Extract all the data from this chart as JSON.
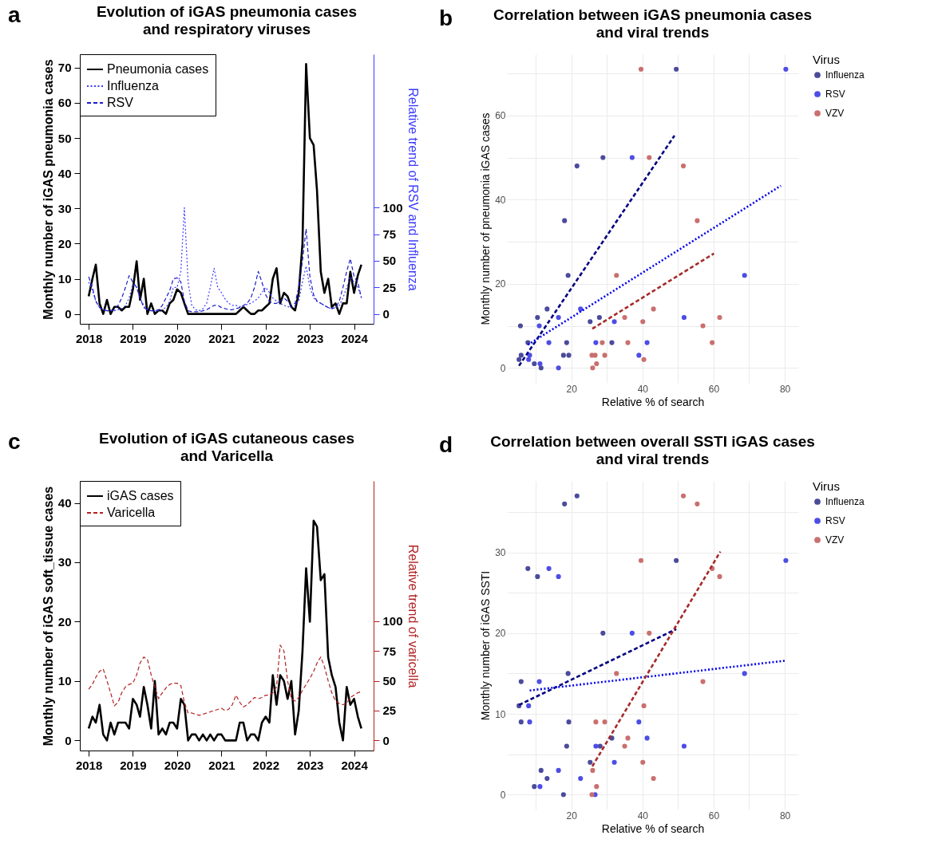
{
  "chart_data": [
    {
      "type": "line",
      "title": "Evolution of iGAS pneumonia cases\nand respiratory viruses",
      "annotations": [
        "a"
      ],
      "ylabel": "Monthly number of iGAS pneumonia cases",
      "y2label": "Relative trend of RSV and Influenza",
      "legend": "top left",
      "grid": false,
      "x": [
        "2018-01",
        "2018-02",
        "2018-03",
        "2018-04",
        "2018-05",
        "2018-06",
        "2018-07",
        "2018-08",
        "2018-09",
        "2018-10",
        "2018-11",
        "2018-12",
        "2019-01",
        "2019-02",
        "2019-03",
        "2019-04",
        "2019-05",
        "2019-06",
        "2019-07",
        "2019-08",
        "2019-09",
        "2019-10",
        "2019-11",
        "2019-12",
        "2020-01",
        "2020-02",
        "2020-03",
        "2020-04",
        "2020-05",
        "2020-06",
        "2020-07",
        "2020-08",
        "2020-09",
        "2020-10",
        "2020-11",
        "2020-12",
        "2021-01",
        "2021-02",
        "2021-03",
        "2021-04",
        "2021-05",
        "2021-06",
        "2021-07",
        "2021-08",
        "2021-09",
        "2021-10",
        "2021-11",
        "2021-12",
        "2022-01",
        "2022-02",
        "2022-03",
        "2022-04",
        "2022-05",
        "2022-06",
        "2022-07",
        "2022-08",
        "2022-09",
        "2022-10",
        "2022-11",
        "2022-12",
        "2023-01",
        "2023-02",
        "2023-03",
        "2023-04",
        "2023-05",
        "2023-06",
        "2023-07",
        "2023-08",
        "2023-09",
        "2023-10",
        "2023-11",
        "2023-12",
        "2024-01",
        "2024-02",
        "2024-03"
      ],
      "xlim": [
        "2017-10-20",
        "2024-06-10"
      ],
      "xticks": [
        "2018",
        "2019",
        "2020",
        "2021",
        "2022",
        "2023",
        "2024"
      ],
      "ylim": [
        -2.8,
        73.8
      ],
      "yticks": [
        0,
        10,
        20,
        30,
        40,
        50,
        60,
        70
      ],
      "y2lim": [
        -9.3,
        244.4
      ],
      "y2ticks": [
        0,
        25,
        50,
        75,
        100
      ],
      "series": [
        {
          "name": "Pneumonia cases",
          "color": "#000000",
          "line_style": "solid",
          "values": [
            5,
            10,
            14,
            3,
            0,
            4,
            0,
            2,
            2,
            1,
            2,
            2,
            7,
            15,
            4,
            10,
            0,
            3,
            0,
            1,
            1,
            0,
            3,
            4,
            7,
            6,
            3,
            0,
            0,
            0,
            0,
            0,
            0,
            0,
            0,
            0,
            0,
            0,
            0,
            0,
            0,
            1,
            2,
            1,
            0,
            0,
            1,
            1,
            2,
            3,
            10,
            13,
            3,
            6,
            5,
            2,
            1,
            6,
            20,
            71,
            50,
            48,
            35,
            12,
            6,
            10,
            2,
            3,
            0,
            3,
            3,
            12,
            6,
            11,
            14
          ]
        },
        {
          "name": "Influenza",
          "color": "#3b3bff",
          "line_style": "dotted",
          "axis": "y2",
          "values": [
            30,
            22,
            12,
            6,
            4,
            3,
            3,
            3,
            4,
            5,
            8,
            15,
            28,
            25,
            15,
            8,
            4,
            3,
            3,
            3,
            4,
            6,
            12,
            25,
            25,
            40,
            100,
            30,
            8,
            4,
            3,
            5,
            10,
            25,
            43,
            25,
            20,
            14,
            10,
            8,
            8,
            7,
            7,
            9,
            10,
            12,
            15,
            20,
            25,
            20,
            15,
            12,
            10,
            8,
            7,
            6,
            8,
            12,
            30,
            45,
            25,
            15,
            12,
            10,
            8,
            6,
            5,
            6,
            8,
            15,
            25,
            35,
            30,
            25,
            16
          ]
        },
        {
          "name": "RSV",
          "color": "#1c1cc8",
          "line_style": "dashed",
          "axis": "y2",
          "values": [
            35,
            25,
            12,
            6,
            4,
            3,
            3,
            4,
            8,
            15,
            25,
            36,
            30,
            25,
            15,
            6,
            4,
            3,
            3,
            4,
            8,
            15,
            22,
            33,
            34,
            30,
            12,
            3,
            2,
            2,
            2,
            3,
            4,
            6,
            8,
            8,
            6,
            5,
            4,
            4,
            5,
            6,
            8,
            10,
            15,
            25,
            40,
            30,
            18,
            12,
            10,
            10,
            12,
            15,
            12,
            8,
            10,
            25,
            50,
            80,
            35,
            18,
            12,
            10,
            8,
            6,
            5,
            6,
            12,
            25,
            40,
            52,
            35,
            30,
            15
          ]
        }
      ]
    },
    {
      "type": "scatter",
      "title": "Correlation between iGAS pneumonia cases\nand viral trends",
      "annotations": [
        "b"
      ],
      "xlabel": "Relative % of search",
      "ylabel": "Monthly number of pneumonia iGAS cases",
      "legend_title": "Virus",
      "legend": "right",
      "grid": true,
      "xlim": [
        1.9,
        83.8
      ],
      "xticks": [
        {
          "value": 10,
          "label": null
        },
        20,
        {
          "value": 30,
          "label": null
        },
        40,
        {
          "value": 50,
          "label": null
        },
        60,
        {
          "value": 70,
          "label": null
        },
        80
      ],
      "ylim": [
        -3.55,
        74.55
      ],
      "yticks": [
        {
          "value": 10,
          "label": null
        },
        0,
        20,
        {
          "value": 30,
          "label": null
        },
        40,
        {
          "value": 50,
          "label": null
        },
        60,
        {
          "value": 70,
          "label": null
        }
      ],
      "series": [
        {
          "name": "Influenza",
          "type": "scatter",
          "color": "#4b4b9c",
          "x": [
            5.7,
            5.9,
            5.3,
            7.8,
            9.6,
            10.5,
            11.5,
            13.2,
            17.8,
            18.7,
            19.1,
            19.3,
            21.6,
            18.1,
            25.3,
            27.9,
            28.9,
            31.4,
            49.5
          ],
          "values": [
            10,
            3,
            2,
            6,
            1,
            12,
            0,
            14,
            3,
            6,
            22,
            3,
            48,
            35,
            11,
            12,
            50,
            6,
            71
          ]
        },
        {
          "name": "RSV",
          "type": "scatter",
          "color": "#4d4de6",
          "x": [
            8,
            8.3,
            11,
            11.2,
            13.7,
            16.4,
            16.4,
            22.6,
            26.9,
            32.1,
            37.1,
            39,
            41.3,
            51.7,
            68.7,
            80.3
          ],
          "values": [
            2,
            3,
            10,
            1,
            6,
            12,
            0,
            14,
            6,
            11,
            50,
            3,
            6,
            12,
            22,
            71
          ]
        },
        {
          "name": "VZV",
          "type": "scatter",
          "color": "#c9706e",
          "x": [
            39.6,
            41.9,
            51.5,
            55.4,
            32.7,
            43.1,
            35,
            61.7,
            40.1,
            57,
            28.7,
            35.9,
            59.6,
            25.8,
            29.4,
            40.4,
            27.1,
            26,
            26.7
          ],
          "values": [
            71,
            50,
            48,
            35,
            22,
            14,
            12,
            12,
            11,
            10,
            6,
            6,
            6,
            3,
            3,
            2,
            1,
            0,
            3
          ]
        },
        {
          "type": "line",
          "color": "#000080",
          "line_style": "dashed",
          "x": [
            5.3,
            49
          ],
          "values": [
            0.5,
            55.2
          ]
        },
        {
          "type": "line",
          "color": "#0000ee",
          "line_style": "dotted",
          "x": [
            7.8,
            78.9
          ],
          "values": [
            5.5,
            43.3
          ]
        },
        {
          "type": "line",
          "color": "#a52a2a",
          "line_style": "dashed",
          "x": [
            25.9,
            60.1
          ],
          "values": [
            9.3,
            27.2
          ]
        }
      ]
    },
    {
      "type": "line",
      "title": "Evolution of iGAS cutaneous cases\nand Varicella",
      "annotations": [
        "c"
      ],
      "ylabel": "Monthly number of iGAS soft_tissue cases",
      "y2label": "Relative trend of varicella",
      "legend": "top left",
      "grid": false,
      "x": [
        "2018-01",
        "2018-02",
        "2018-03",
        "2018-04",
        "2018-05",
        "2018-06",
        "2018-07",
        "2018-08",
        "2018-09",
        "2018-10",
        "2018-11",
        "2018-12",
        "2019-01",
        "2019-02",
        "2019-03",
        "2019-04",
        "2019-05",
        "2019-06",
        "2019-07",
        "2019-08",
        "2019-09",
        "2019-10",
        "2019-11",
        "2019-12",
        "2020-01",
        "2020-02",
        "2020-03",
        "2020-04",
        "2020-05",
        "2020-06",
        "2020-07",
        "2020-08",
        "2020-09",
        "2020-10",
        "2020-11",
        "2020-12",
        "2021-01",
        "2021-02",
        "2021-03",
        "2021-04",
        "2021-05",
        "2021-06",
        "2021-07",
        "2021-08",
        "2021-09",
        "2021-10",
        "2021-11",
        "2021-12",
        "2022-01",
        "2022-02",
        "2022-03",
        "2022-04",
        "2022-05",
        "2022-06",
        "2022-07",
        "2022-08",
        "2022-09",
        "2022-10",
        "2022-11",
        "2022-12",
        "2023-01",
        "2023-02",
        "2023-03",
        "2023-04",
        "2023-05",
        "2023-06",
        "2023-07",
        "2023-08",
        "2023-09",
        "2023-10",
        "2023-11",
        "2023-12",
        "2024-01",
        "2024-02",
        "2024-03"
      ],
      "xlim": [
        "2017-10-20",
        "2024-06-10"
      ],
      "xticks": [
        "2018",
        "2019",
        "2020",
        "2021",
        "2022",
        "2023",
        "2024"
      ],
      "ylim": [
        -1.7,
        43.7
      ],
      "yticks": [
        0,
        10,
        20,
        30,
        40
      ],
      "y2lim": [
        -8.5,
        217.8
      ],
      "y2ticks": [
        0,
        25,
        50,
        75,
        100
      ],
      "series": [
        {
          "name": "iGAS cases",
          "color": "#000000",
          "line_style": "solid",
          "values": [
            2,
            4,
            3,
            6,
            1,
            0,
            3,
            1,
            3,
            3,
            3,
            2,
            7,
            6,
            4,
            9,
            6,
            2,
            10,
            1,
            2,
            1,
            3,
            3,
            2,
            7,
            6,
            0,
            1,
            1,
            0,
            1,
            0,
            1,
            0,
            1,
            1,
            0,
            0,
            0,
            0,
            3,
            3,
            0,
            1,
            1,
            0,
            3,
            4,
            3,
            11,
            6,
            11,
            10,
            7,
            10,
            1,
            5,
            15,
            29,
            20,
            37,
            36,
            27,
            28,
            14,
            11,
            9,
            3,
            0,
            9,
            6,
            7,
            4,
            2
          ]
        },
        {
          "name": "Varicella",
          "color": "#b22222",
          "line_style": "dashed",
          "axis": "y2",
          "values": [
            43,
            47,
            53,
            58,
            60,
            50,
            40,
            29,
            32,
            40,
            45,
            47,
            48,
            55,
            65,
            70,
            68,
            55,
            45,
            35,
            40,
            44,
            47,
            48,
            48,
            46,
            32,
            23,
            23,
            22,
            21,
            22,
            23,
            24,
            25,
            26,
            27,
            25,
            26,
            30,
            38,
            32,
            28,
            30,
            33,
            36,
            35,
            36,
            38,
            38,
            40,
            45,
            80,
            75,
            50,
            35,
            33,
            36,
            42,
            47,
            52,
            58,
            65,
            70,
            62,
            50,
            40,
            33,
            31,
            30,
            31,
            36,
            38,
            40,
            41
          ]
        }
      ]
    },
    {
      "type": "scatter",
      "title": "Correlation between overall SSTI iGAS cases\nand viral trends",
      "annotations": [
        "d"
      ],
      "xlabel": "Relative % of search",
      "ylabel": "Monthly number of iGAS SSTI",
      "legend_title": "Virus",
      "legend": "right",
      "grid": true,
      "xlim": [
        1.9,
        83.8
      ],
      "xticks": [
        {
          "value": 10,
          "label": null
        },
        20,
        {
          "value": 30,
          "label": null
        },
        40,
        {
          "value": 50,
          "label": null
        },
        60,
        {
          "value": 70,
          "label": null
        },
        80
      ],
      "ylim": [
        -1.85,
        38.85
      ],
      "yticks": [
        0,
        {
          "value": 5,
          "label": null
        },
        10,
        {
          "value": 15,
          "label": null
        },
        20,
        {
          "value": 25,
          "label": null
        },
        30,
        {
          "value": 35,
          "label": null
        }
      ],
      "series": [
        {
          "name": "Influenza",
          "type": "scatter",
          "color": "#4b4b9c",
          "x": [
            5.3,
            5.9,
            5.9,
            7.8,
            9.6,
            10.5,
            11.5,
            13.2,
            17.8,
            18.7,
            19.1,
            19.3,
            18.1,
            21.6,
            25.3,
            28.9,
            31.4,
            28.1,
            49.5
          ],
          "values": [
            11,
            14,
            9,
            28,
            1,
            27,
            3,
            2,
            0,
            6,
            15,
            9,
            36,
            37,
            4,
            20,
            7,
            6,
            29
          ]
        },
        {
          "name": "RSV",
          "type": "scatter",
          "color": "#4d4de6",
          "x": [
            8,
            8.3,
            11,
            11.2,
            13.7,
            16.4,
            16.4,
            22.6,
            26.9,
            26.7,
            32.1,
            37.1,
            39,
            41.3,
            51.7,
            68.7,
            80.3
          ],
          "values": [
            11,
            9,
            14,
            1,
            28,
            27,
            3,
            2,
            6,
            0,
            4,
            20,
            9,
            7,
            6,
            15,
            29
          ]
        },
        {
          "name": "VZV",
          "type": "scatter",
          "color": "#c9706e",
          "x": [
            51.5,
            55.4,
            39.6,
            59.6,
            61.7,
            41.9,
            32.7,
            57,
            40.4,
            26.9,
            29.4,
            35.9,
            35,
            40.1,
            26,
            43.1,
            27.1,
            25.8
          ],
          "values": [
            37,
            36,
            29,
            28,
            27,
            20,
            15,
            14,
            11,
            9,
            9,
            7,
            6,
            4,
            3,
            2,
            1,
            0
          ]
        },
        {
          "type": "line",
          "color": "#000080",
          "line_style": "dashed",
          "x": [
            5.3,
            49.5
          ],
          "values": [
            11.1,
            20.5
          ]
        },
        {
          "type": "line",
          "color": "#0000ee",
          "line_style": "dotted",
          "x": [
            8.3,
            80.4
          ],
          "values": [
            12.9,
            16.6
          ]
        },
        {
          "type": "line",
          "color": "#a52a2a",
          "line_style": "dashed",
          "x": [
            25.9,
            61.9
          ],
          "values": [
            3.5,
            30.1
          ]
        }
      ]
    }
  ]
}
